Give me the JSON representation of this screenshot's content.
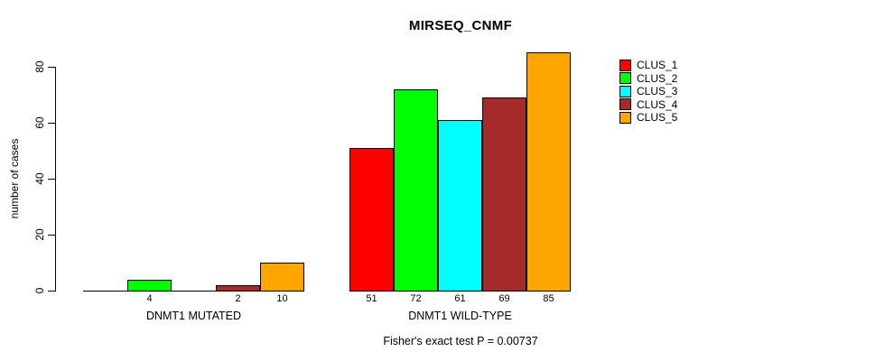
{
  "chart_data": {
    "type": "bar",
    "title": "MIRSEQ_CNMF",
    "ylabel": "number of cases",
    "ylim": [
      0,
      85
    ],
    "yticks": [
      0,
      20,
      40,
      60,
      80
    ],
    "grid": false,
    "legend_position": "right",
    "groups": [
      "DNMT1 MUTATED",
      "DNMT1 WILD-TYPE"
    ],
    "series": [
      {
        "name": "CLUS_1",
        "color": "#ff0000",
        "values": [
          0,
          51
        ]
      },
      {
        "name": "CLUS_2",
        "color": "#00ff00",
        "values": [
          4,
          72
        ]
      },
      {
        "name": "CLUS_3",
        "color": "#00ffff",
        "values": [
          0,
          61
        ]
      },
      {
        "name": "CLUS_4",
        "color": "#a52a2a",
        "values": [
          2,
          69
        ]
      },
      {
        "name": "CLUS_5",
        "color": "#ffa500",
        "values": [
          10,
          85
        ]
      }
    ],
    "bar_value_labels": {
      "DNMT1 MUTATED": [
        null,
        4,
        null,
        2,
        10
      ],
      "DNMT1 WILD-TYPE": [
        51,
        72,
        61,
        69,
        85
      ]
    },
    "caption": "Fisher's exact test P = 0.00737"
  }
}
